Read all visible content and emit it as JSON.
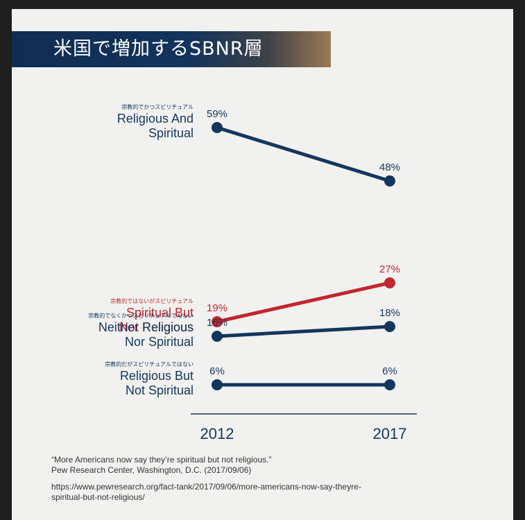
{
  "title": "米国で増加するSBNR層",
  "chart_data": {
    "type": "line",
    "x": [
      "2012",
      "2017"
    ],
    "series": [
      {
        "jp": "宗教的でかつスピリチュアル",
        "name_lines": [
          "Religious And",
          "Spiritual"
        ],
        "values": [
          59,
          48
        ],
        "labels": [
          "59%",
          "48%"
        ],
        "color": "#14365e"
      },
      {
        "jp": "宗教的ではないがスピリチュアル",
        "name_lines": [
          "Spiritual But",
          "Not Religious"
        ],
        "values": [
          19,
          27
        ],
        "labels": [
          "19%",
          "27%"
        ],
        "color": "#c0272d"
      },
      {
        "jp": "宗教的でなくかつスピリチュアルでもない",
        "name_lines": [
          "Neither Religious",
          "Nor Spiritual"
        ],
        "values": [
          16,
          18
        ],
        "labels": [
          "16%",
          "18%"
        ],
        "color": "#14365e"
      },
      {
        "jp": "宗教的だがスピリチュアルではない",
        "name_lines": [
          "Religious But",
          "Not Spiritual"
        ],
        "values": [
          6,
          6
        ],
        "labels": [
          "6%",
          "6%"
        ],
        "color": "#14365e"
      }
    ]
  },
  "source": {
    "quote": "“More Americans now say they’re spiritual but not religious.”",
    "publisher": "Pew Research Center, Washington, D.C. (2017/09/06)",
    "url_line1": "https://www.pewresearch.org/fact-tank/2017/09/06/more-americans-now-say-theyre-",
    "url_line2": "spiritual-but-not-religious/"
  }
}
